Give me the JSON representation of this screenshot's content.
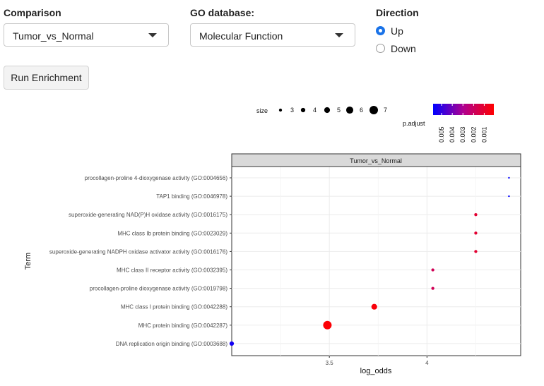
{
  "controls": {
    "comparison": {
      "label": "Comparison",
      "value": "Tumor_vs_Normal"
    },
    "go_database": {
      "label": "GO database:",
      "value": "Molecular Function"
    },
    "direction": {
      "label": "Direction",
      "options": [
        {
          "label": "Up",
          "checked": true
        },
        {
          "label": "Down",
          "checked": false
        }
      ]
    },
    "run_button": "Run Enrichment"
  },
  "colors": {
    "accent": "#1a73e8",
    "low": "#0000ff",
    "high": "#ff0000"
  },
  "chart_data": {
    "type": "scatter",
    "facet_title": "Tumor_vs_Normal",
    "xlabel": "log_odds",
    "ylabel": "Term",
    "xlim": [
      3.0,
      4.48
    ],
    "x_ticks": [
      3.5,
      4.0
    ],
    "grid": true,
    "legend_placement": "top",
    "terms": [
      "procollagen-proline 4-dioxygenase activity (GO:0004656)",
      "TAP1 binding (GO:0046978)",
      "superoxide-generating NAD(P)H oxidase activity (GO:0016175)",
      "MHC class Ib protein binding (GO:0023029)",
      "superoxide-generating NADPH oxidase activator activity (GO:0016176)",
      "MHC class II receptor activity (GO:0032395)",
      "procollagen-proline dioxygenase activity (GO:0019798)",
      "MHC class I protein binding (GO:0042288)",
      "MHC protein binding (GO:0042287)",
      "DNA replication origin binding (GO:0003688)"
    ],
    "points": [
      {
        "log_odds": 4.42,
        "size": 2,
        "p_adjust": 0.0058
      },
      {
        "log_odds": 4.42,
        "size": 2,
        "p_adjust": 0.0058
      },
      {
        "log_odds": 4.25,
        "size": 3,
        "p_adjust": 0.0011
      },
      {
        "log_odds": 4.25,
        "size": 3,
        "p_adjust": 0.0011
      },
      {
        "log_odds": 4.25,
        "size": 3,
        "p_adjust": 0.0011
      },
      {
        "log_odds": 4.03,
        "size": 3,
        "p_adjust": 0.0018
      },
      {
        "log_odds": 4.03,
        "size": 3,
        "p_adjust": 0.0018
      },
      {
        "log_odds": 3.73,
        "size": 5,
        "p_adjust": 0.0003
      },
      {
        "log_odds": 3.49,
        "size": 7,
        "p_adjust": 0.0002
      },
      {
        "log_odds": 3.0,
        "size": 4,
        "p_adjust": 0.0055
      }
    ],
    "size_legend": {
      "title": "size",
      "values": [
        3,
        4,
        5,
        6,
        7
      ]
    },
    "color_legend": {
      "title": "p.adjust",
      "ticks": [
        "0.005",
        "0.004",
        "0.003",
        "0.002",
        "0.001"
      ],
      "tick_values": [
        0.005,
        0.004,
        0.003,
        0.002,
        0.001
      ],
      "range": [
        0.0058,
        0.0001
      ]
    }
  }
}
